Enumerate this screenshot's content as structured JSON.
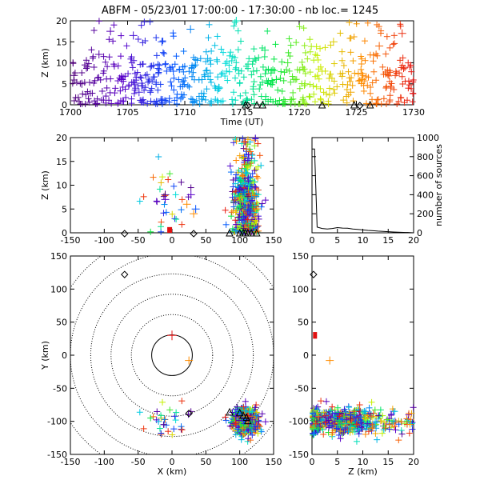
{
  "title": "ABFM - 05/23/01 17:00:00 - 17:30:00 - nb loc.=   1245",
  "chart_data": [
    {
      "id": "time-height",
      "type": "scatter",
      "xlabel": "Time (UT)",
      "ylabel": "Z (km)",
      "xlim": [
        1700,
        1730
      ],
      "ylim": [
        0,
        20
      ],
      "xticks": [
        1700,
        1705,
        1710,
        1715,
        1720,
        1725,
        1730
      ],
      "yticks": [
        0,
        5,
        10,
        15,
        20
      ],
      "color_by": "time (purple → blue → cyan → green → yellow → orange → red)",
      "points_sample": [
        {
          "x": 1700.3,
          "z": 7
        },
        {
          "x": 1701.0,
          "z": 5
        },
        {
          "x": 1701.5,
          "z": 9
        },
        {
          "x": 1702.5,
          "z": 12
        },
        {
          "x": 1703.5,
          "z": 17.5
        },
        {
          "x": 1704.5,
          "z": 6
        },
        {
          "x": 1705.5,
          "z": 16.5
        },
        {
          "x": 1706.0,
          "z": 3
        },
        {
          "x": 1707.0,
          "z": 9
        },
        {
          "x": 1708.0,
          "z": 15
        },
        {
          "x": 1709.0,
          "z": 8
        },
        {
          "x": 1710.5,
          "z": 18
        },
        {
          "x": 1711.5,
          "z": 6
        },
        {
          "x": 1712.0,
          "z": 11
        },
        {
          "x": 1713.0,
          "z": 4
        },
        {
          "x": 1714.5,
          "z": 20
        },
        {
          "x": 1716.0,
          "z": 8
        },
        {
          "x": 1717.0,
          "z": 13
        },
        {
          "x": 1718.0,
          "z": 6
        },
        {
          "x": 1719.0,
          "z": 10
        },
        {
          "x": 1720.5,
          "z": 5
        },
        {
          "x": 1722.0,
          "z": 8
        },
        {
          "x": 1723.0,
          "z": 15
        },
        {
          "x": 1724.5,
          "z": 3
        },
        {
          "x": 1725.5,
          "z": 6
        },
        {
          "x": 1727.0,
          "z": 14
        },
        {
          "x": 1728.0,
          "z": 4
        },
        {
          "x": 1729.0,
          "z": 17
        }
      ],
      "ground_triangles_time": [
        1715.3,
        1716.3,
        1716.8,
        1722.0,
        1724.8,
        1726.2
      ],
      "ground_diamonds_time": [
        1715.5,
        1725.3
      ]
    },
    {
      "id": "x-height",
      "type": "scatter",
      "xlabel": "",
      "ylabel": "Z (km)",
      "xlim": [
        -150,
        150
      ],
      "ylim": [
        0,
        20
      ],
      "xticks": [
        -150,
        -100,
        -50,
        0,
        50,
        100,
        150
      ],
      "yticks": [
        0,
        5,
        10,
        15,
        20
      ]
    },
    {
      "id": "histogram",
      "type": "line",
      "xlabel": "",
      "ylabel": "number of sources",
      "xlim": [
        0,
        20
      ],
      "ylim": [
        0,
        1000
      ],
      "xticks": [
        0,
        5,
        10,
        15,
        20
      ],
      "yticks": [
        0,
        200,
        400,
        600,
        800,
        1000
      ],
      "x": [
        0,
        0.5,
        1,
        2,
        3,
        4,
        5,
        6,
        7,
        8,
        9,
        10,
        11,
        12,
        13,
        14,
        15,
        16,
        17,
        18,
        19,
        20
      ],
      "y": [
        880,
        880,
        60,
        45,
        40,
        45,
        55,
        50,
        48,
        40,
        35,
        30,
        25,
        22,
        18,
        15,
        12,
        8,
        6,
        4,
        3,
        0
      ]
    },
    {
      "id": "plan-view",
      "type": "scatter",
      "xlabel": "X (km)",
      "ylabel": "Y (km)",
      "xlim": [
        -150,
        150
      ],
      "ylim": [
        -150,
        150
      ],
      "xticks": [
        -150,
        -100,
        -50,
        0,
        50,
        100,
        150
      ],
      "yticks": [
        -150,
        -100,
        -50,
        0,
        50,
        100,
        150
      ],
      "range_rings_km": [
        30,
        60,
        90,
        120,
        150,
        180
      ],
      "stations_triangle": [
        [
          85,
          -87
        ],
        [
          100,
          -88
        ],
        [
          105,
          -92
        ],
        [
          110,
          -95
        ],
        [
          112,
          -100
        ]
      ],
      "stations_diamond": [
        [
          -70,
          122
        ],
        [
          25,
          -88
        ]
      ],
      "cluster_center": [
        110,
        -100
      ]
    },
    {
      "id": "height-y",
      "type": "scatter",
      "xlabel": "Z (km)",
      "ylabel": "",
      "xlim": [
        0,
        20
      ],
      "ylim": [
        -150,
        150
      ],
      "xticks": [
        0,
        5,
        10,
        15,
        20
      ],
      "yticks": [
        -150,
        -100,
        -50,
        0,
        50,
        100,
        150
      ]
    }
  ]
}
